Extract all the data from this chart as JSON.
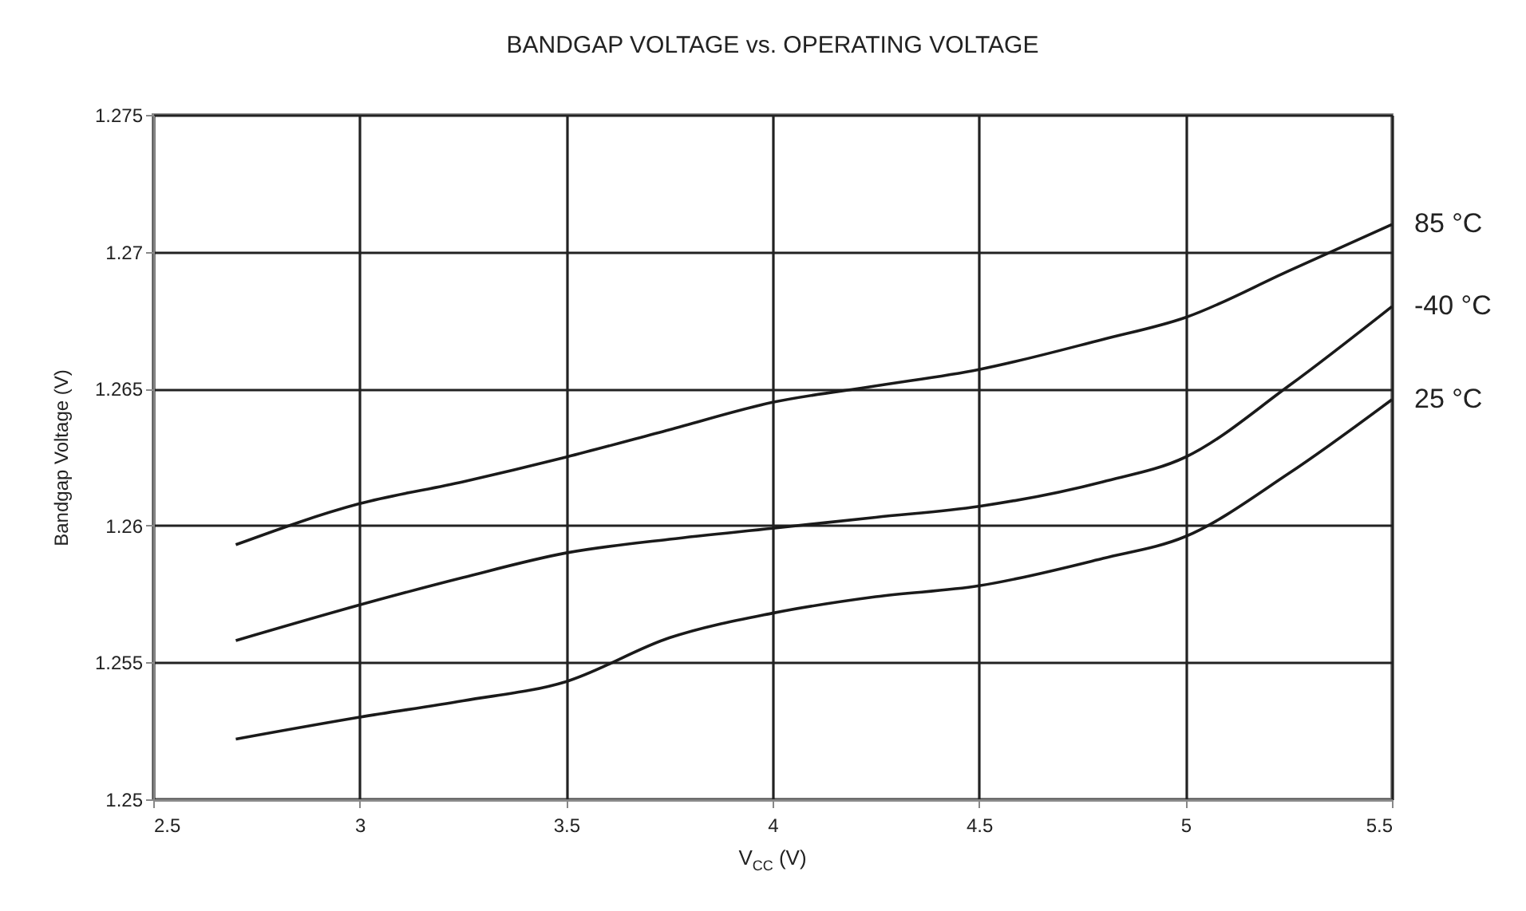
{
  "chart_data": {
    "type": "line",
    "title": "BANDGAP VOLTAGE vs. OPERATING VOLTAGE",
    "xlabel": "V$_{CC}$ (V)",
    "ylabel": "Bandgap Voltage (V)",
    "x": [
      2.7,
      3,
      3.25,
      3.5,
      3.75,
      4,
      4.25,
      4.5,
      4.8,
      5,
      5.25,
      5.5
    ],
    "series": [
      {
        "name": "85 °C",
        "color": "#1a1a1a",
        "values": [
          1.2593,
          1.2608,
          1.2616,
          1.2625,
          1.2635,
          1.2645,
          1.2651,
          1.2657,
          1.2668,
          1.2676,
          1.2693,
          1.271
        ]
      },
      {
        "name": "-40 °C",
        "color": "#1a1a1a",
        "values": [
          1.2558,
          1.2571,
          1.2581,
          1.259,
          1.2595,
          1.2599,
          1.2603,
          1.2607,
          1.2616,
          1.2625,
          1.2651,
          1.268
        ]
      },
      {
        "name": "25 °C",
        "color": "#1a1a1a",
        "values": [
          1.2522,
          1.253,
          1.2536,
          1.2543,
          1.2559,
          1.2568,
          1.2574,
          1.2578,
          1.2588,
          1.2596,
          1.2619,
          1.2646
        ]
      }
    ],
    "xlim": [
      2.5,
      5.5
    ],
    "xticks": [
      2.5,
      3,
      3.5,
      4,
      4.5,
      5,
      5.5
    ],
    "ylim": [
      1.25,
      1.275
    ],
    "yticks": [
      1.25,
      1.255,
      1.26,
      1.265,
      1.27,
      1.275
    ],
    "grid": true,
    "legend": false,
    "marker": "none",
    "line_style": "solid"
  }
}
